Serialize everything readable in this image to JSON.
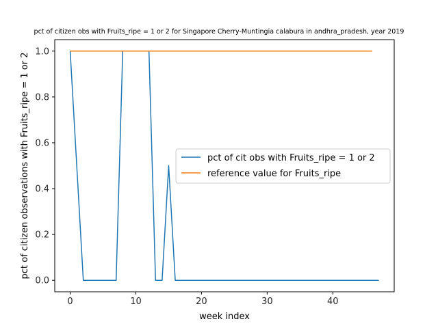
{
  "chart_data": {
    "type": "line",
    "title": "pct of citizen obs with Fruits_ripe = 1 or 2 for Singapore Cherry-Muntingia calabura in andhra_pradesh, year 2019",
    "xlabel": "week index",
    "ylabel": "pct of citizen observations with Fruits_ripe = 1 or 2",
    "xlim": [
      -2.35,
      49.35
    ],
    "ylim": [
      -0.05,
      1.05
    ],
    "xticks": [
      0,
      10,
      20,
      30,
      40
    ],
    "yticks": [
      0.0,
      0.2,
      0.4,
      0.6,
      0.8,
      1.0
    ],
    "xtick_labels": [
      "0",
      "10",
      "20",
      "30",
      "40"
    ],
    "ytick_labels": [
      "0.0",
      "0.2",
      "0.4",
      "0.6",
      "0.8",
      "1.0"
    ],
    "grid": false,
    "legend_position": "center-right",
    "series": [
      {
        "name": "pct of cit obs with Fruits_ripe = 1 or 2",
        "color": "#1f77b4",
        "x": [
          0,
          1,
          2,
          3,
          4,
          5,
          6,
          7,
          8,
          9,
          10,
          11,
          12,
          13,
          14,
          15,
          16,
          17,
          18,
          19,
          20,
          21,
          22,
          23,
          24,
          25,
          26,
          27,
          28,
          29,
          30,
          31,
          32,
          33,
          34,
          35,
          36,
          37,
          38,
          39,
          40,
          41,
          42,
          43,
          44,
          45,
          46,
          47
        ],
        "y": [
          1.0,
          0.5,
          0,
          0,
          0,
          0,
          0,
          0,
          1.0,
          1.0,
          1.0,
          1.0,
          1.0,
          0,
          0,
          0.5,
          0,
          0,
          0,
          0,
          0,
          0,
          0,
          0,
          0,
          0,
          0,
          0,
          0,
          0,
          0,
          0,
          0,
          0,
          0,
          0,
          0,
          0,
          0,
          0,
          0,
          0,
          0,
          0,
          0,
          0,
          0,
          0
        ]
      },
      {
        "name": "reference value for Fruits_ripe",
        "color": "#ff7f0e",
        "x": [
          0,
          46
        ],
        "y": [
          1.0,
          1.0
        ]
      }
    ]
  }
}
